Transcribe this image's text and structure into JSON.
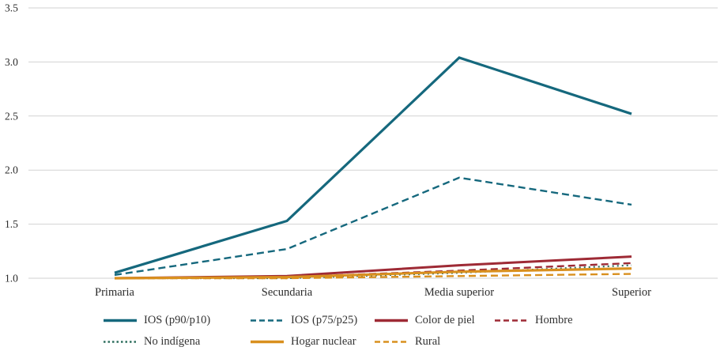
{
  "chart_data": {
    "type": "line",
    "categories": [
      "Primaria",
      "Secundaria",
      "Media superior",
      "Superior"
    ],
    "series": [
      {
        "name": "IOS (p90/p10)",
        "values": [
          1.05,
          1.53,
          3.04,
          2.52
        ],
        "color": "#15687d",
        "dash": "solid",
        "width": 3.2
      },
      {
        "name": "IOS (p75/p25)",
        "values": [
          1.03,
          1.27,
          1.93,
          1.68
        ],
        "color": "#15687d",
        "dash": "dashed",
        "width": 2.4
      },
      {
        "name": "Color de piel",
        "values": [
          1.0,
          1.02,
          1.12,
          1.2
        ],
        "color": "#9e2a35",
        "dash": "solid",
        "width": 3.0
      },
      {
        "name": "Hombre",
        "values": [
          1.0,
          1.01,
          1.07,
          1.14
        ],
        "color": "#9e2a35",
        "dash": "dashed",
        "width": 2.4
      },
      {
        "name": "No indígena",
        "values": [
          1.0,
          1.0,
          1.05,
          1.12
        ],
        "color": "#2f6f5f",
        "dash": "dotted",
        "width": 2.2
      },
      {
        "name": "Hogar nuclear",
        "values": [
          1.0,
          1.01,
          1.06,
          1.09
        ],
        "color": "#d9901f",
        "dash": "solid",
        "width": 3.2
      },
      {
        "name": "Rural",
        "values": [
          1.0,
          1.0,
          1.02,
          1.04
        ],
        "color": "#d9901f",
        "dash": "dashed",
        "width": 2.4
      }
    ],
    "ylim": [
      1.0,
      3.5
    ],
    "ytick_step": 0.5,
    "ytick_labels": [
      "1.0",
      "1.5",
      "2.0",
      "2.5",
      "3.0",
      "3.5"
    ],
    "grid": "horizontal",
    "grid_color": "#d2d2d2",
    "legend_position": "bottom",
    "legend_rows": [
      4,
      3
    ],
    "title": "",
    "xlabel": "",
    "ylabel": ""
  }
}
